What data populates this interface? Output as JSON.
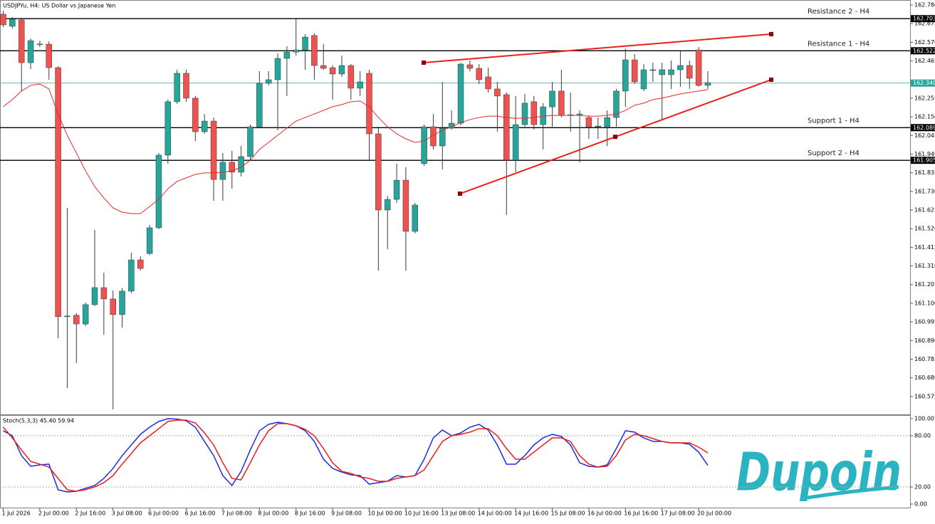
{
  "chart_data": [
    {
      "type": "candlestick",
      "title": "USDJPYu, H4:  US Dollar vs Japanese Yen",
      "logo": "Dupoin",
      "categories": [
        "1 Jul 2026",
        null,
        null,
        null,
        "2 Jul 00:00",
        null,
        null,
        null,
        "2 Jul 16:00",
        null,
        null,
        null,
        "3 Jul 08:00",
        null,
        null,
        null,
        "6 Jul 00:00",
        null,
        null,
        null,
        "6 Jul 16:00",
        null,
        null,
        null,
        "7 Jul 08:00",
        null,
        null,
        null,
        "8 Jul 00:00",
        null,
        null,
        null,
        "8 Jul 16:00",
        null,
        null,
        null,
        "9 Jul 08:00",
        null,
        null,
        null,
        "10 Jul 00:00",
        null,
        null,
        null,
        "10 Jul 16:00",
        null,
        null,
        null,
        "13 Jul 08:00",
        null,
        null,
        null,
        "14 Jul 00:00",
        null,
        null,
        null,
        "14 Jul 16:00",
        null,
        null,
        null,
        "15 Jul 08:00",
        null,
        null,
        null,
        "16 Jul 00:00",
        null,
        null,
        null,
        "16 Jul 16:00",
        null,
        null,
        null,
        "17 Jul 08:00",
        null,
        null,
        null,
        "20 Jul 00:00",
        null
      ],
      "open": [
        162.728,
        162.66,
        162.696,
        162.455,
        162.559,
        162.559,
        162.427,
        161.024,
        161.032,
        160.983,
        161.092,
        161.188,
        161.124,
        161.036,
        161.168,
        161.344,
        161.38,
        161.525,
        161.934,
        162.235,
        162.395,
        162.255,
        162.066,
        162.126,
        161.797,
        161.894,
        161.838,
        161.926,
        162.094,
        162.339,
        162.359,
        162.479,
        162.515,
        162.527,
        162.608,
        162.439,
        162.427,
        162.391,
        162.439,
        162.311,
        162.395,
        162.054,
        161.625,
        161.685,
        161.793,
        161.505,
        161.886,
        162.094,
        161.986,
        162.086,
        162.114,
        162.443,
        162.423,
        162.375,
        162.307,
        162.275,
        161.906,
        162.106,
        162.235,
        162.106,
        162.206,
        162.295,
        162.158,
        162.162,
        162.146,
        162.094,
        162.094,
        162.146,
        162.295,
        162.471,
        162.307,
        162.411,
        162.387,
        162.387,
        162.415,
        162.439,
        162.527,
        162.327
      ],
      "high": [
        162.748,
        162.712,
        162.708,
        162.591,
        162.579,
        162.575,
        162.435,
        161.637,
        161.044,
        161.104,
        161.513,
        161.272,
        161.172,
        161.184,
        161.384,
        161.364,
        161.541,
        161.946,
        162.247,
        162.415,
        162.415,
        162.267,
        162.166,
        162.146,
        161.946,
        161.958,
        161.986,
        162.106,
        162.407,
        162.407,
        162.507,
        162.547,
        162.7,
        162.616,
        162.62,
        162.559,
        162.439,
        162.495,
        162.447,
        162.407,
        162.415,
        162.094,
        161.705,
        161.886,
        161.866,
        161.665,
        162.106,
        162.166,
        162.347,
        162.186,
        162.455,
        162.467,
        162.447,
        162.427,
        162.347,
        162.287,
        162.267,
        162.279,
        162.267,
        162.227,
        162.347,
        162.415,
        162.287,
        162.186,
        162.158,
        162.146,
        162.186,
        162.307,
        162.535,
        162.503,
        162.447,
        162.455,
        162.455,
        162.467,
        162.519,
        162.467,
        162.543,
        162.407
      ],
      "low": [
        162.656,
        162.648,
        162.295,
        162.419,
        162.543,
        162.359,
        160.903,
        160.623,
        160.763,
        160.971,
        161.084,
        160.923,
        160.502,
        160.963,
        161.156,
        161.284,
        161.372,
        161.517,
        161.886,
        162.223,
        162.235,
        162.014,
        162.054,
        161.677,
        161.677,
        161.745,
        161.814,
        161.906,
        162.086,
        162.327,
        162.074,
        162.267,
        162.495,
        162.415,
        162.359,
        162.415,
        162.247,
        162.375,
        162.247,
        162.267,
        161.906,
        161.284,
        161.404,
        161.665,
        161.284,
        161.493,
        161.874,
        161.966,
        161.854,
        162.078,
        162.102,
        162.407,
        162.335,
        162.287,
        162.066,
        161.597,
        161.838,
        162.094,
        162.078,
        161.966,
        162.094,
        162.146,
        162.066,
        161.894,
        162.026,
        162.026,
        161.986,
        162.094,
        162.206,
        162.335,
        162.295,
        162.347,
        162.134,
        162.307,
        162.319,
        162.307,
        162.319,
        162.307
      ],
      "close": [
        162.668,
        162.7,
        162.455,
        162.579,
        162.56,
        162.427,
        161.024,
        161.028,
        160.983,
        161.092,
        161.188,
        161.124,
        161.036,
        161.168,
        161.344,
        161.296,
        161.525,
        161.934,
        162.235,
        162.395,
        162.255,
        162.066,
        162.126,
        161.797,
        161.894,
        161.838,
        161.926,
        162.094,
        162.339,
        162.359,
        162.479,
        162.515,
        162.527,
        162.599,
        162.439,
        162.423,
        162.391,
        162.439,
        162.311,
        162.347,
        162.054,
        161.625,
        161.685,
        161.793,
        161.505,
        161.653,
        162.094,
        161.986,
        162.086,
        162.114,
        162.447,
        162.423,
        162.359,
        162.307,
        162.267,
        161.906,
        162.106,
        162.227,
        162.106,
        162.206,
        162.295,
        162.158,
        162.162,
        162.166,
        162.094,
        162.098,
        162.146,
        162.295,
        162.471,
        162.347,
        162.415,
        162.415,
        162.415,
        162.415,
        162.439,
        162.367,
        162.327,
        162.343
      ],
      "up_color": "#26a69a",
      "down_color": "#ef5350",
      "wick_color": "#3a3a3a",
      "series": [
        {
          "color": "#e8282a",
          "values": [
            162.207,
            162.247,
            162.295,
            162.327,
            162.335,
            162.307,
            162.166,
            162.046,
            161.946,
            161.846,
            161.757,
            161.693,
            161.637,
            161.613,
            161.605,
            161.605,
            161.645,
            161.685,
            161.745,
            161.786,
            161.806,
            161.826,
            161.834,
            161.834,
            161.838,
            161.846,
            161.866,
            161.906,
            161.966,
            162.006,
            162.046,
            162.086,
            162.126,
            162.146,
            162.166,
            162.186,
            162.207,
            162.219,
            162.235,
            162.239,
            162.207,
            162.146,
            162.094,
            162.054,
            162.026,
            162.006,
            162.014,
            162.046,
            162.074,
            162.094,
            162.118,
            162.134,
            162.146,
            162.154,
            162.154,
            162.146,
            162.142,
            162.142,
            162.146,
            162.154,
            162.158,
            162.158,
            162.158,
            162.158,
            162.154,
            162.154,
            162.158,
            162.166,
            162.186,
            162.215,
            162.227,
            162.247,
            162.255,
            162.267,
            162.279,
            162.287,
            162.295,
            162.303
          ]
        }
      ],
      "levels": [
        {
          "name": "Resistance 2 - H4",
          "value": 162.703
        },
        {
          "name": "Resistance 1 - H4",
          "value": 162.522
        },
        {
          "name": "Support 1 - H4",
          "value": 162.089
        },
        {
          "name": "Support 2 - H4",
          "value": 161.905
        }
      ],
      "last_price": {
        "value": 162.34,
        "label": "162.340"
      },
      "trendlines": [
        {
          "color": "#e8201c",
          "values": [
            162.455,
            162.616
          ]
        },
        {
          "color": "#e8201c",
          "values": [
            161.717,
            162.359
          ]
        }
      ],
      "ylim": [
        160.474,
        162.808
      ],
      "yticks": [
        {
          "value": 162.78,
          "label": "162.780"
        },
        162.675,
        {
          "value": 162.57,
          "label": "162.570"
        },
        162.465,
        162.255,
        {
          "value": 162.15,
          "label": "162.150"
        },
        162.045,
        {
          "value": 161.94,
          "label": "161.940"
        },
        161.835,
        {
          "value": 161.73,
          "label": "161.730"
        },
        161.625,
        {
          "value": 161.52,
          "label": "161.520"
        },
        161.415,
        {
          "value": 161.31,
          "label": "161.310"
        },
        161.205,
        {
          "value": 161.1,
          "label": "161.100"
        },
        160.995,
        {
          "value": 160.89,
          "label": "160.890"
        },
        160.785,
        {
          "value": 160.68,
          "label": "160.680"
        },
        160.575
      ]
    },
    {
      "type": "line",
      "title": "Stoch(5,3,3) 45.40 59.94",
      "series": [
        {
          "color": "#1a2ee0",
          "values": [
            85.8,
            80,
            56.7,
            44.2,
            45.8,
            46.7,
            16.7,
            14.2,
            15,
            18.3,
            21.7,
            30,
            41.7,
            56.7,
            69.2,
            81.7,
            90,
            96.7,
            100,
            99.5,
            97.5,
            90,
            73.3,
            56.7,
            33.3,
            21.7,
            38.3,
            63.3,
            85.8,
            93.3,
            95.8,
            94.2,
            91.7,
            85.8,
            73.3,
            52.5,
            41.7,
            37.5,
            34.2,
            33.3,
            23.3,
            25,
            26.7,
            33.3,
            31.7,
            33.3,
            52.5,
            77.5,
            86.7,
            80,
            83.3,
            90,
            93.3,
            86.7,
            69.2,
            46.7,
            46.7,
            56.7,
            69.2,
            77.5,
            81.7,
            79.2,
            69.2,
            48.3,
            44.2,
            43.3,
            45.8,
            65,
            85.8,
            84.2,
            77.5,
            73.3,
            73.3,
            71.7,
            71.7,
            70,
            60.8,
            45.4
          ]
        },
        {
          "color": "#ee1c1c",
          "values": [
            90,
            77.5,
            63.3,
            50,
            46.7,
            43.3,
            30,
            16.7,
            15,
            16.7,
            20,
            25,
            33.3,
            46.7,
            59.2,
            71.7,
            80,
            88.3,
            96.7,
            98.3,
            98.3,
            95,
            83.3,
            69.2,
            48.3,
            30,
            28.3,
            48.3,
            69.2,
            85.8,
            94.2,
            94.2,
            91.7,
            87.5,
            80,
            65,
            48.3,
            38.3,
            35.8,
            31.7,
            30,
            26.7,
            26.7,
            30,
            31.7,
            33.3,
            40,
            56.7,
            73.3,
            80,
            81.7,
            84.2,
            88.3,
            88.3,
            80,
            65,
            52.5,
            52.5,
            60.8,
            69.2,
            77.5,
            77.5,
            73.3,
            56.7,
            46.7,
            43.3,
            44.2,
            56.7,
            75,
            81.7,
            80,
            76.7,
            73.3,
            71.7,
            71.7,
            71.7,
            66.7,
            59.94
          ]
        }
      ],
      "levels": [
        80,
        20
      ],
      "ylim": [
        -4.2,
        104.2
      ],
      "yticks": [
        {
          "value": 100,
          "label": "100.00"
        },
        {
          "value": 80,
          "label": "80.00"
        },
        {
          "value": 20,
          "label": "20.00"
        },
        {
          "value": 0,
          "label": "0.00"
        }
      ]
    }
  ]
}
